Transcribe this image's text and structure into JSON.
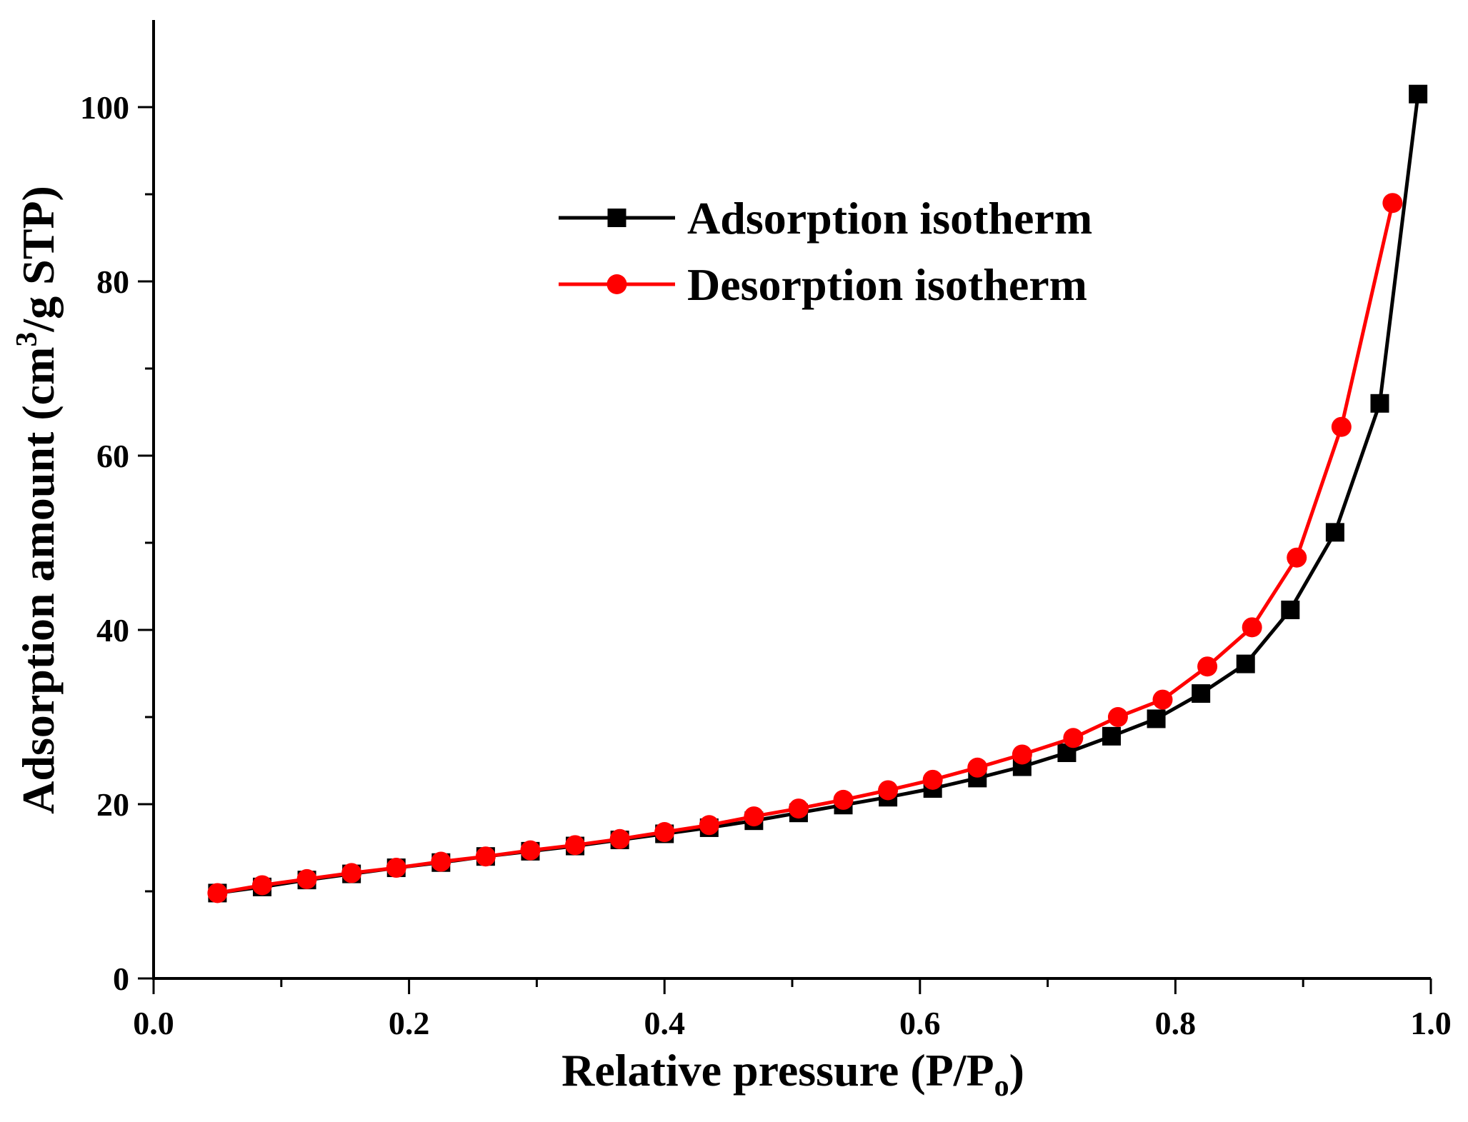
{
  "chart_data": {
    "type": "line",
    "title": "",
    "xlabel_main": "Relative pressure (P/P",
    "xlabel_sub": "o",
    "xlabel_end": ")",
    "ylabel_main": "Adsorption amount (cm",
    "ylabel_sup": "3",
    "ylabel_end": "/g STP)",
    "xlim": [
      0.0,
      1.0
    ],
    "ylim": [
      0,
      110
    ],
    "xticks": [
      "0.0",
      "0.2",
      "0.4",
      "0.6",
      "0.8",
      "1.0"
    ],
    "xtick_values": [
      0.0,
      0.2,
      0.4,
      0.6,
      0.8,
      1.0
    ],
    "yticks": [
      "0",
      "20",
      "40",
      "60",
      "80",
      "100"
    ],
    "ytick_values": [
      0,
      20,
      40,
      60,
      80,
      100
    ],
    "legend_position": "top-center",
    "series": [
      {
        "name": "Adsorption isotherm",
        "color": "#000000",
        "marker": "square",
        "x": [
          0.05,
          0.085,
          0.12,
          0.155,
          0.19,
          0.225,
          0.26,
          0.295,
          0.33,
          0.365,
          0.4,
          0.435,
          0.47,
          0.505,
          0.54,
          0.575,
          0.61,
          0.645,
          0.68,
          0.715,
          0.75,
          0.785,
          0.82,
          0.855,
          0.89,
          0.925,
          0.96,
          0.99
        ],
        "y": [
          9.8,
          10.5,
          11.3,
          12.0,
          12.7,
          13.3,
          14.0,
          14.6,
          15.2,
          15.9,
          16.6,
          17.3,
          18.1,
          19.0,
          19.9,
          20.8,
          21.8,
          23.0,
          24.3,
          25.9,
          27.8,
          29.8,
          32.7,
          36.1,
          42.3,
          51.2,
          66.0,
          101.5
        ]
      },
      {
        "name": "Desorption isotherm",
        "color": "#ff0000",
        "marker": "circle",
        "x": [
          0.05,
          0.085,
          0.12,
          0.155,
          0.19,
          0.225,
          0.26,
          0.295,
          0.33,
          0.365,
          0.4,
          0.435,
          0.47,
          0.505,
          0.54,
          0.575,
          0.61,
          0.645,
          0.68,
          0.72,
          0.755,
          0.79,
          0.825,
          0.86,
          0.895,
          0.93,
          0.97
        ],
        "y": [
          9.8,
          10.7,
          11.4,
          12.1,
          12.7,
          13.4,
          14.0,
          14.7,
          15.3,
          16.0,
          16.8,
          17.6,
          18.6,
          19.5,
          20.5,
          21.6,
          22.8,
          24.2,
          25.7,
          27.6,
          30.0,
          32.0,
          35.8,
          40.3,
          48.3,
          63.3,
          89.0
        ]
      }
    ]
  }
}
